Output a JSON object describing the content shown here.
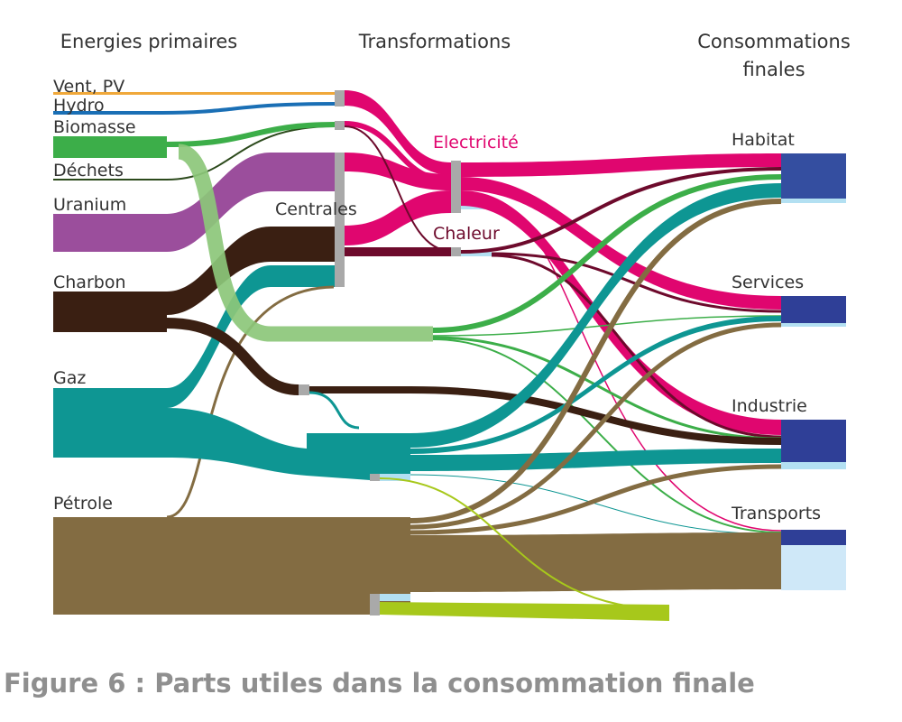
{
  "caption": "Figure 6 : Parts utiles dans la consommation finale",
  "headers": {
    "primary": "Energies primaires",
    "transform": "Transformations",
    "final_line1": "Consommations",
    "final_line2": "finales"
  },
  "primary_sources": {
    "vent_pv": "Vent, PV",
    "hydro": "Hydro",
    "biomasse": "Biomasse",
    "dechets": "Déchets",
    "uranium": "Uranium",
    "charbon": "Charbon",
    "gaz": "Gaz",
    "petrole": "Pétrole"
  },
  "transformations": {
    "centrales": "Centrales",
    "electricite": "Electricité",
    "chaleur": "Chaleur"
  },
  "final_uses": {
    "habitat": "Habitat",
    "services": "Services",
    "industrie": "Industrie",
    "transports": "Transports"
  },
  "colors": {
    "vent_pv": "#f0a83a",
    "hydro": "#1a6fb5",
    "biomasse": "#3cae49",
    "biomasse_light": "#8cc77a",
    "dechets": "#2c4a1c",
    "uranium": "#9b4e9c",
    "charbon": "#3a1f12",
    "gaz": "#0e9693",
    "petrole": "#836c42",
    "electricite": "#e0066f",
    "chaleur": "#6d0a2c",
    "losses": "#b3e0f2",
    "useful": "#2f3f97",
    "lime": "#a7c81b",
    "gray_node": "#a9a9a9"
  }
}
